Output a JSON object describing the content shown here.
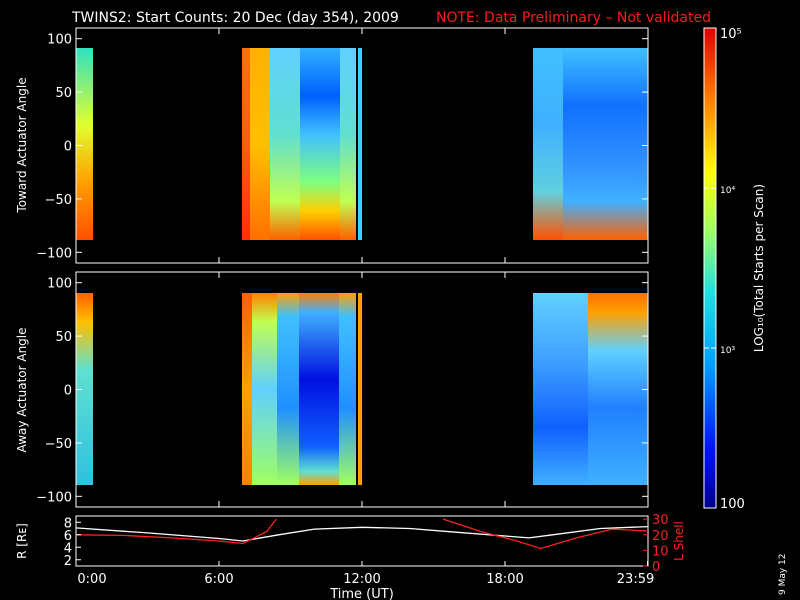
{
  "title": {
    "main": "TWINS2: Start Counts: 20 Dec (day 354), 2009",
    "note": "NOTE: Data Preliminary – Not validated",
    "note_color": "#ff1a1a"
  },
  "date_stamp": "9 May 12",
  "colorbar": {
    "label": "LOG₁₀(Total Starts per Scan)",
    "ticks": [
      "10⁵",
      "10⁴",
      "10³",
      "100"
    ],
    "scale": "log",
    "range": [
      100,
      100000
    ]
  },
  "chart_data": [
    {
      "type": "heatmap",
      "panel": "top",
      "ylabel": "Toward Actuator Angle",
      "ylim": [
        -110,
        110
      ],
      "yticks": [
        "100",
        "50",
        "0",
        "−50",
        "−100"
      ],
      "xlim": [
        0,
        24
      ],
      "data_angle_range": [
        -90,
        90
      ],
      "data_intervals_hours": [
        [
          0.0,
          0.2
        ],
        [
          7.05,
          11.9
        ],
        [
          19.2,
          24.0
        ]
      ]
    },
    {
      "type": "heatmap",
      "panel": "middle",
      "ylabel": "Away Actuator Angle",
      "ylim": [
        -110,
        110
      ],
      "yticks": [
        "100",
        "50",
        "0",
        "−50",
        "−100"
      ],
      "xlim": [
        0,
        24
      ],
      "data_angle_range": [
        -90,
        90
      ],
      "data_intervals_hours": [
        [
          0.0,
          0.2
        ],
        [
          7.05,
          11.9
        ],
        [
          19.2,
          24.0
        ]
      ]
    },
    {
      "type": "line",
      "panel": "bottom",
      "ylabel_left": "R [Rᴇ]",
      "ylabel_right": "L Shell",
      "yticks_left": [
        "8",
        "6",
        "4",
        "2"
      ],
      "ylim_left": [
        1,
        9
      ],
      "yticks_right": [
        "30",
        "20",
        "10",
        "0"
      ],
      "ylim_right": [
        0,
        32
      ],
      "xlabel": "Time (UT)",
      "xticks": [
        "0:00",
        "6:00",
        "12:00",
        "18:00",
        "23:59"
      ],
      "xlim": [
        0,
        24
      ],
      "series": [
        {
          "color": "#ffffff",
          "axis": "left",
          "points": [
            [
              0,
              7.1
            ],
            [
              3,
              6.3
            ],
            [
              6,
              5.4
            ],
            [
              7,
              5.0
            ],
            [
              8.5,
              6.0
            ],
            [
              10,
              6.9
            ],
            [
              12,
              7.2
            ],
            [
              14,
              7.0
            ],
            [
              16,
              6.4
            ],
            [
              18,
              5.8
            ],
            [
              19,
              5.5
            ],
            [
              20,
              6.0
            ],
            [
              22,
              7.0
            ],
            [
              24,
              7.3
            ]
          ]
        },
        {
          "color": "#ff2020",
          "axis": "left",
          "segments": [
            [
              [
                0,
                6.0
              ],
              [
                2,
                5.9
              ],
              [
                4,
                5.5
              ],
              [
                6,
                5.0
              ],
              [
                7,
                4.6
              ],
              [
                8,
                6.5
              ],
              [
                8.4,
                8.5
              ]
            ],
            [
              [
                15.4,
                8.5
              ],
              [
                17,
                6.5
              ],
              [
                18.5,
                5.0
              ],
              [
                19.5,
                3.8
              ],
              [
                21,
                5.5
              ],
              [
                22.5,
                6.9
              ],
              [
                24,
                6.6
              ]
            ]
          ]
        }
      ]
    }
  ]
}
